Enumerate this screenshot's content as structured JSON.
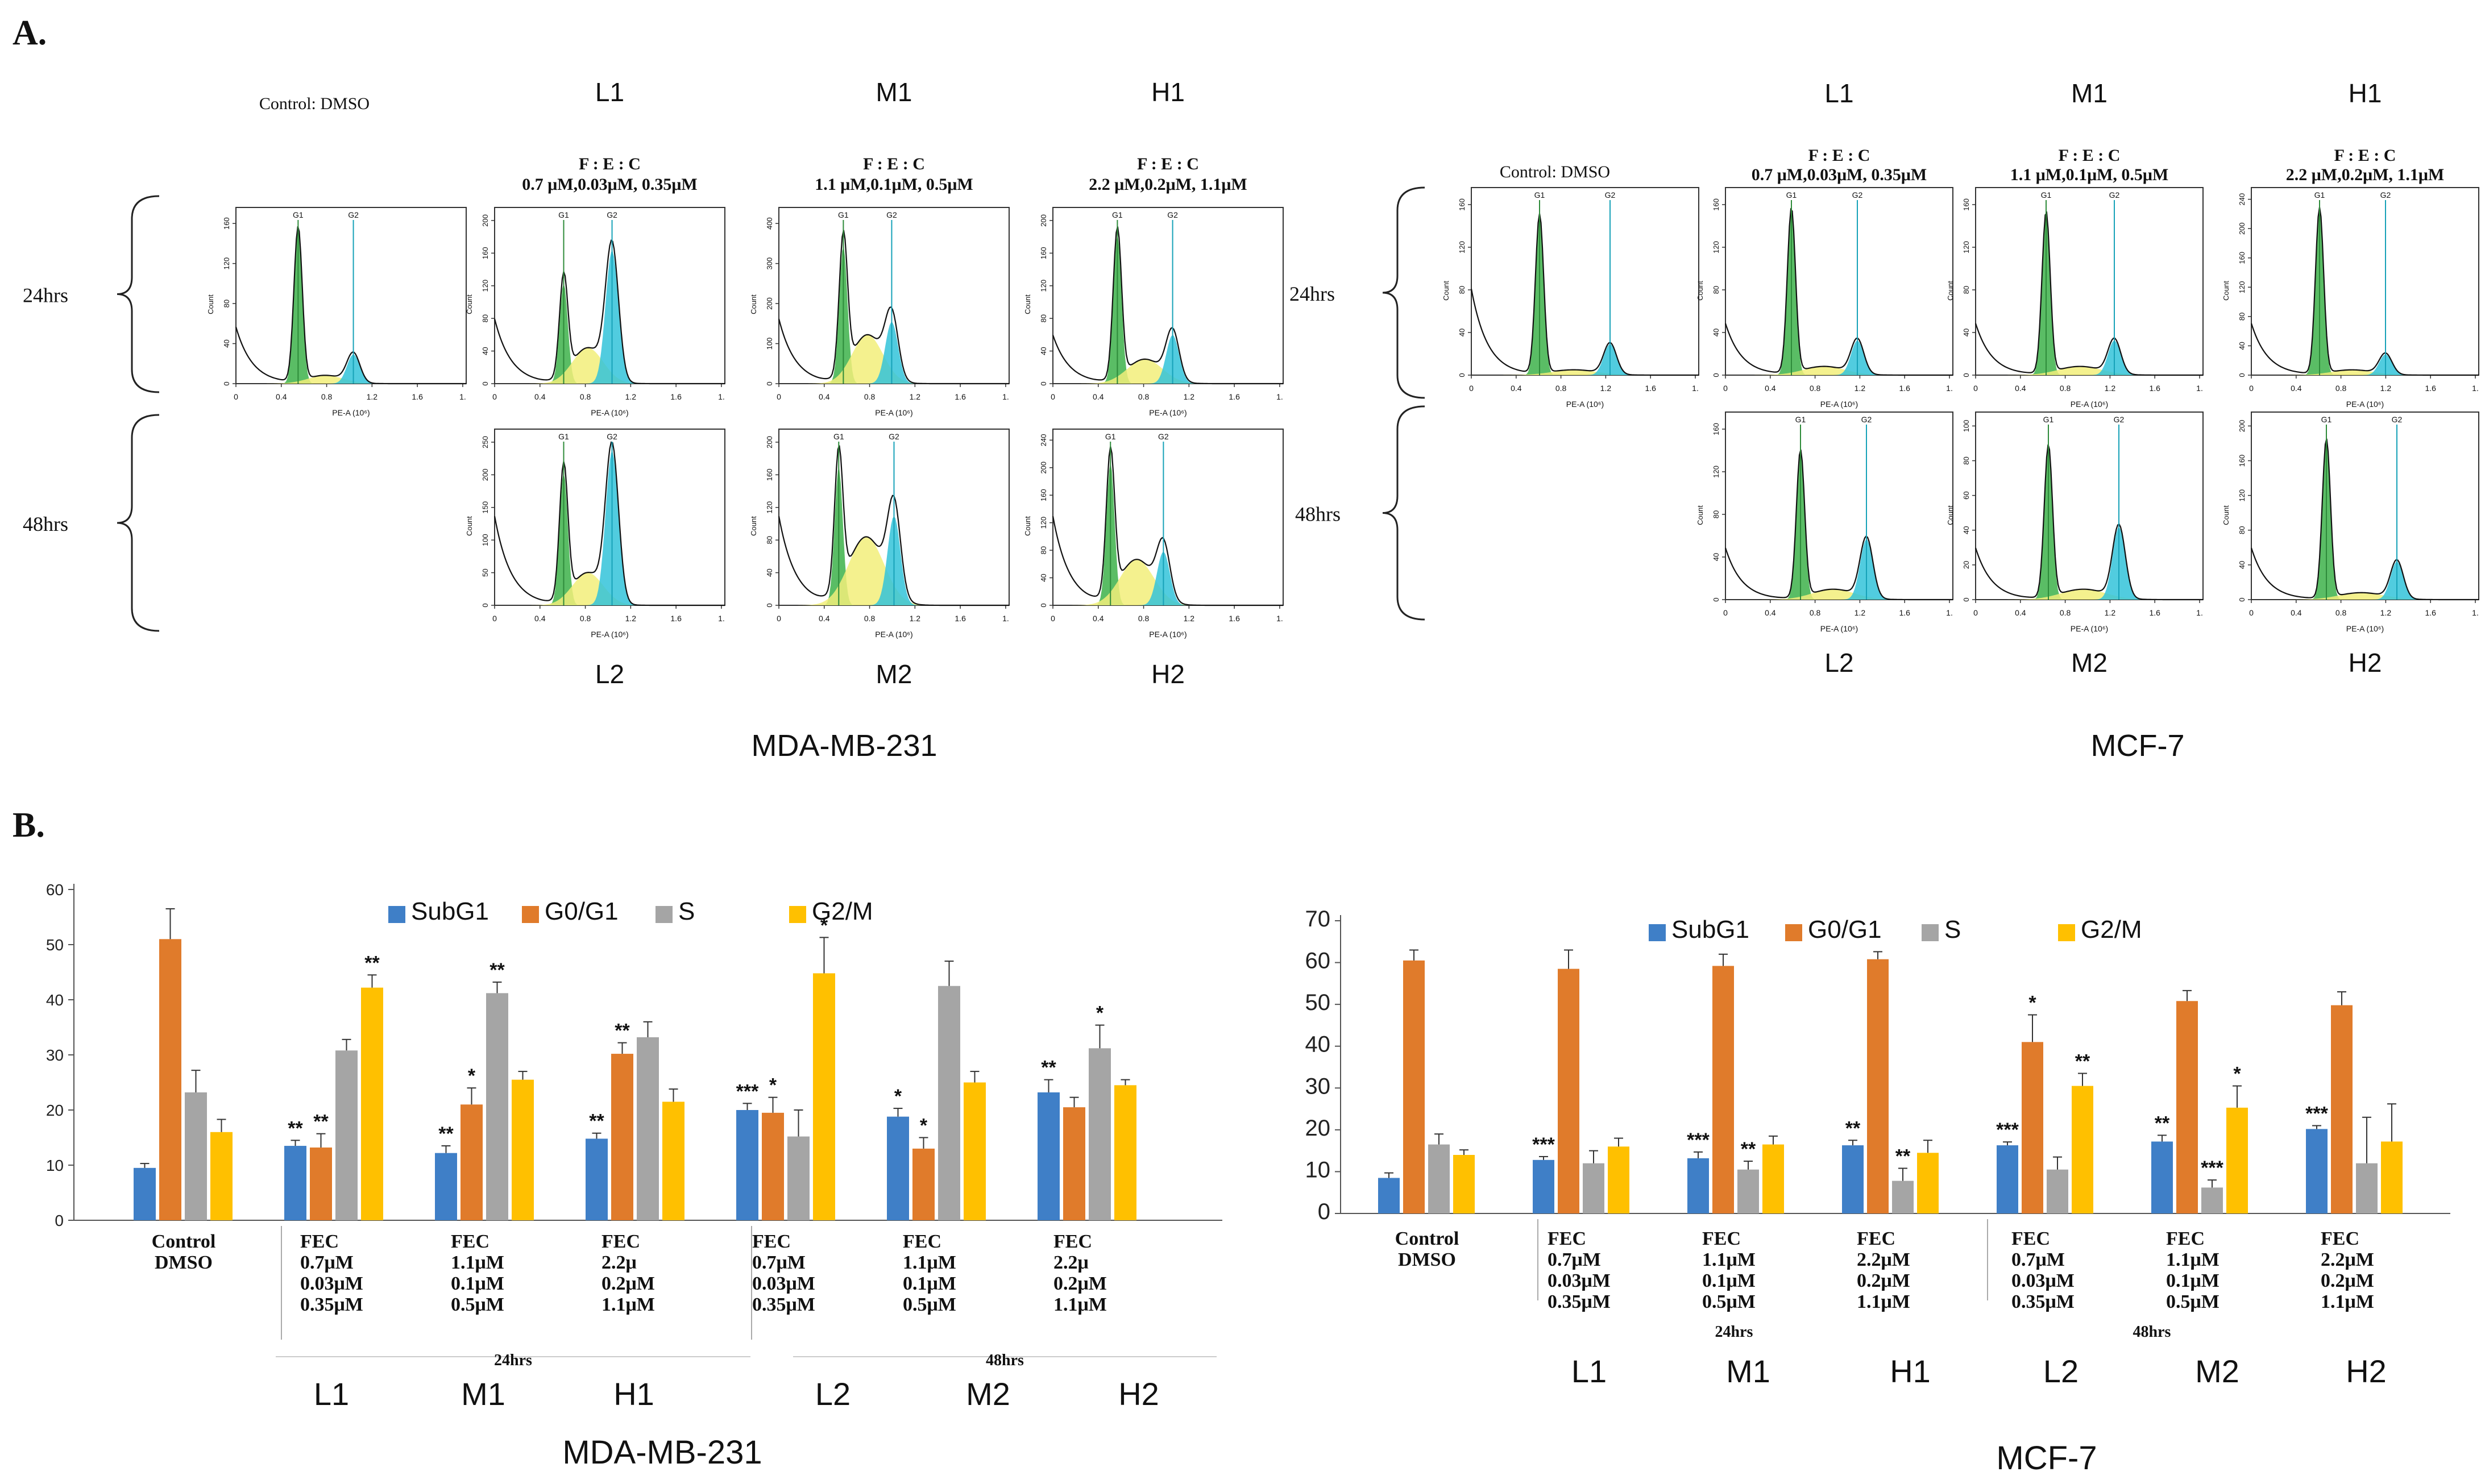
{
  "panel_labels": {
    "a": "A.",
    "b": "B."
  },
  "colors": {
    "subg1": "#3F7FC7",
    "g0g1": "#E07B2B",
    "s": "#A5A5A5",
    "g2m": "#FFC000",
    "g1_fill": "#3DB24A",
    "s_fill": "#F2EE7A",
    "g2_fill": "#33C3D9",
    "g1_line": "#2E8B3A",
    "g2_line": "#17A2B8",
    "fit": "#8E2A8E"
  },
  "histograms": {
    "axis_xlabel": "PE-A (10⁶)",
    "axis_ylabel": "Count",
    "x_ticks": [
      "0",
      "0.4",
      "0.8",
      "1.2",
      "1.6",
      "1."
    ],
    "gate_g1": "G1",
    "gate_g2": "G2",
    "mda": {
      "cell_line": "MDA-MB-231",
      "time_24": "24hrs",
      "time_48": "48hrs",
      "control_label": "Control: DMSO",
      "fec_label": "F    :    E    :  C",
      "cols": [
        {
          "code_top": "L1",
          "code_bottom": "L2",
          "dose": "0.7 μM,0.03μM, 0.35μM"
        },
        {
          "code_top": "M1",
          "code_bottom": "M2",
          "dose": "1.1 μM,0.1μM, 0.5μM"
        },
        {
          "code_top": "H1",
          "code_bottom": "H2",
          "dose": "2.2 μM,0.2μM, 1.1μM"
        }
      ],
      "y_ticks": {
        "control": [
          "0",
          "40",
          "80",
          "120",
          "160"
        ],
        "L1": [
          "0",
          "40",
          "80",
          "120",
          "160",
          "200"
        ],
        "M1": [
          "0",
          "100",
          "200",
          "300",
          "400"
        ],
        "H1": [
          "0",
          "40",
          "80",
          "120",
          "160",
          "200"
        ],
        "L2": [
          "0",
          "50",
          "100",
          "150",
          "200",
          "250"
        ],
        "M2": [
          "0",
          "40",
          "80",
          "120",
          "160",
          "200"
        ],
        "H2": [
          "0",
          "40",
          "80",
          "120",
          "160",
          "200",
          "240"
        ]
      }
    },
    "mcf": {
      "cell_line": "MCF-7",
      "time_24": "24hrs",
      "time_48": "48hrs",
      "control_label": "Control: DMSO",
      "fec_label": "F    :    E    :  C",
      "cols": [
        {
          "code_top": "L1",
          "code_bottom": "L2",
          "dose": "0.7 μM,0.03μM, 0.35μM"
        },
        {
          "code_top": "M1",
          "code_bottom": "M2",
          "dose": "1.1 μM,0.1μM, 0.5μM"
        },
        {
          "code_top": "H1",
          "code_bottom": "H2",
          "dose": "2.2 μM,0.2μM, 1.1μM"
        }
      ],
      "y_ticks": {
        "control": [
          "0",
          "40",
          "80",
          "120",
          "160"
        ],
        "L1": [
          "0",
          "40",
          "80",
          "120",
          "160"
        ],
        "M1": [
          "0",
          "40",
          "80",
          "120",
          "160"
        ],
        "H1": [
          "0",
          "40",
          "80",
          "120",
          "160",
          "200",
          "240"
        ],
        "L2": [
          "0",
          "40",
          "80",
          "120",
          "160"
        ],
        "M2": [
          "0",
          "20",
          "40",
          "60",
          "80",
          "100"
        ],
        "H2": [
          "0",
          "40",
          "80",
          "120",
          "160",
          "200"
        ]
      }
    }
  },
  "chart_data": [
    {
      "type": "bar",
      "title": "MDA-MB-231",
      "legend": [
        "SubG1",
        "G0/G1",
        "S",
        "G2/M"
      ],
      "ylim": [
        0,
        60
      ],
      "yticks": [
        "0",
        "10",
        "20",
        "30",
        "40",
        "50",
        "60"
      ],
      "categories": [
        "Control DMSO",
        "L1",
        "M1",
        "H1",
        "L2",
        "M2",
        "H2"
      ],
      "cat_labels": [
        [
          "Control",
          "DMSO"
        ],
        [
          "FEC",
          "0.7μM",
          "0.03μM",
          "0.35μM"
        ],
        [
          "FEC",
          "1.1μM",
          "0.1μM",
          "0.5μM"
        ],
        [
          "FEC",
          "2.2μ",
          "0.2μM",
          "1.1μM"
        ],
        [
          "FEC",
          "0.7μM",
          "0.03μM",
          "0.35μM"
        ],
        [
          "FEC",
          "1.1μM",
          "0.1μM",
          "0.5μM"
        ],
        [
          "FEC",
          "2.2μ",
          "0.2μM",
          "1.1μM"
        ]
      ],
      "group_labels": [
        "24hrs",
        "48hrs"
      ],
      "series": [
        {
          "name": "SubG1",
          "values": [
            9.5,
            13.5,
            12.2,
            14.8,
            20.0,
            18.8,
            23.2
          ],
          "errors": [
            0.8,
            1.0,
            1.3,
            1.0,
            1.2,
            1.5,
            2.3
          ],
          "sig": [
            "",
            "**",
            "**",
            "**",
            "***",
            "*",
            "**"
          ]
        },
        {
          "name": "G0/G1",
          "values": [
            51.0,
            13.2,
            21.0,
            30.2,
            19.5,
            13.0,
            20.5
          ],
          "errors": [
            5.5,
            2.5,
            3.0,
            2.0,
            2.8,
            2.0,
            1.8
          ],
          "sig": [
            "",
            "**",
            "*",
            "**",
            "*",
            "*",
            ""
          ]
        },
        {
          "name": "S",
          "values": [
            23.2,
            30.8,
            41.2,
            33.2,
            15.2,
            42.5,
            31.2
          ],
          "errors": [
            4.0,
            2.0,
            2.0,
            2.8,
            4.8,
            4.5,
            4.2
          ],
          "sig": [
            "",
            "",
            "**",
            "",
            "",
            "",
            "*"
          ]
        },
        {
          "name": "G2/M",
          "values": [
            16.0,
            42.2,
            25.5,
            21.5,
            44.8,
            25.0,
            24.5
          ],
          "errors": [
            2.3,
            2.3,
            1.5,
            2.3,
            6.5,
            2.0,
            1.0
          ],
          "sig": [
            "",
            "**",
            "",
            "",
            "*",
            "",
            ""
          ]
        }
      ],
      "x_codes": [
        "L1",
        "M1",
        "H1",
        "L2",
        "M2",
        "H2"
      ]
    },
    {
      "type": "bar",
      "title": "MCF-7",
      "legend": [
        "SubG1",
        "G0/G1",
        "S",
        "G2/M"
      ],
      "ylim": [
        0,
        70
      ],
      "yticks": [
        "0",
        "10",
        "20",
        "30",
        "40",
        "50",
        "60",
        "70"
      ],
      "categories": [
        "Control DMSO",
        "L1",
        "M1",
        "H1",
        "L2",
        "M2",
        "H2"
      ],
      "cat_labels": [
        [
          "Control",
          "DMSO"
        ],
        [
          "FEC",
          "0.7μM",
          "0.03μM",
          "0.35μM"
        ],
        [
          "FEC",
          "1.1μM",
          "0.1μM",
          "0.5μM"
        ],
        [
          "FEC",
          "2.2μM",
          "0.2μM",
          "1.1μM"
        ],
        [
          "FEC",
          "0.7μM",
          "0.03μM",
          "0.35μM"
        ],
        [
          "FEC",
          "1.1μM",
          "0.1μM",
          "0.5μM"
        ],
        [
          "FEC",
          "2.2μM",
          "0.2μM",
          "1.1μM"
        ]
      ],
      "group_labels": [
        "24hrs",
        "48hrs"
      ],
      "series": [
        {
          "name": "SubG1",
          "values": [
            8.5,
            12.8,
            13.2,
            16.3,
            16.3,
            17.2,
            20.2
          ],
          "errors": [
            1.2,
            0.8,
            1.5,
            1.2,
            0.8,
            1.5,
            0.8
          ],
          "sig": [
            "",
            "***",
            "***",
            "**",
            "***",
            "**",
            "***"
          ]
        },
        {
          "name": "G0/G1",
          "values": [
            60.5,
            58.5,
            59.2,
            60.8,
            41.0,
            50.8,
            49.8
          ],
          "errors": [
            2.5,
            4.5,
            2.8,
            1.8,
            6.5,
            2.5,
            3.2
          ],
          "sig": [
            "",
            "",
            "",
            "",
            "*",
            "",
            ""
          ]
        },
        {
          "name": "S",
          "values": [
            16.5,
            12.0,
            10.5,
            7.8,
            10.5,
            6.2,
            12.0
          ],
          "errors": [
            2.5,
            3.0,
            2.0,
            3.0,
            3.0,
            1.8,
            11.0
          ],
          "sig": [
            "",
            "",
            "**",
            "**",
            "",
            "***",
            ""
          ]
        },
        {
          "name": "G2/M",
          "values": [
            14.0,
            16.0,
            16.5,
            14.5,
            30.5,
            25.3,
            17.2
          ],
          "errors": [
            1.2,
            2.0,
            2.0,
            3.0,
            3.0,
            5.2,
            9.0
          ],
          "sig": [
            "",
            "",
            "",
            "",
            "**",
            "*",
            ""
          ]
        }
      ],
      "x_codes": [
        "L1",
        "M1",
        "H1",
        "L2",
        "M2",
        "H2"
      ]
    }
  ]
}
